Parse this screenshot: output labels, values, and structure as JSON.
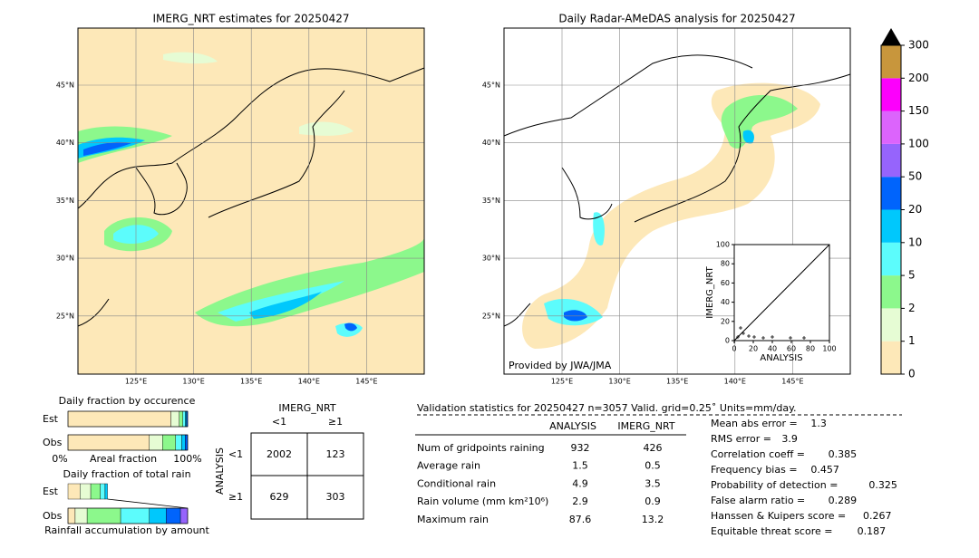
{
  "left_map": {
    "title": "IMERG_NRT estimates for 20250427",
    "lat_labels": [
      "45°N",
      "40°N",
      "35°N",
      "30°N",
      "25°N"
    ],
    "lon_labels": [
      "125°E",
      "130°E",
      "135°E",
      "140°E",
      "145°E"
    ]
  },
  "right_map": {
    "title": "Daily Radar-AMeDAS analysis for 20250427",
    "lat_labels": [
      "45°N",
      "40°N",
      "35°N",
      "30°N",
      "25°N"
    ],
    "lon_labels": [
      "125°E",
      "130°E",
      "135°E",
      "140°E",
      "145°E"
    ],
    "credit": "Provided by JWA/JMA",
    "inset": {
      "xlabel": "ANALYSIS",
      "ylabel": "IMERG_NRT",
      "xlim": [
        0,
        100
      ],
      "ylim": [
        0,
        100
      ],
      "xticks": [
        0,
        20,
        40,
        60,
        80,
        100
      ],
      "yticks": [
        0,
        20,
        40,
        60,
        80,
        100
      ]
    }
  },
  "colorbar": {
    "ticks": [
      0,
      1,
      2,
      5,
      10,
      20,
      50,
      100,
      150,
      200,
      300
    ],
    "colors": [
      "#fde8b8",
      "#e6fcd4",
      "#8cf88c",
      "#5cfcfc",
      "#00c8fc",
      "#0064fc",
      "#9664fc",
      "#dc64fc",
      "#fc00fc",
      "#c8963c"
    ],
    "extend_color": "#000000"
  },
  "fractions": {
    "occurrence_title": "Daily fraction by occurence",
    "rain_title": "Daily fraction of total rain",
    "row_labels": [
      "Est",
      "Obs"
    ],
    "row_labels_2": [
      "Est",
      "Obs"
    ],
    "axis_left": "0%",
    "axis_mid": "Areal fraction",
    "axis_right": "100%",
    "footer": "Rainfall accumulation by amount",
    "colors": [
      "#fde8b8",
      "#e6fcd4",
      "#8cf88c",
      "#5cfcfc",
      "#00c8fc",
      "#0064fc",
      "#9664fc"
    ],
    "occurrence_est": [
      86,
      7,
      3,
      2,
      1,
      1
    ],
    "occurrence_obs": [
      68,
      11,
      11,
      5,
      3,
      2
    ],
    "rain_est": [
      10,
      9,
      8,
      4,
      2
    ],
    "rain_obs": [
      6,
      10,
      28,
      24,
      14,
      12,
      6
    ]
  },
  "contingency": {
    "col_title": "IMERG_NRT",
    "col_labels": [
      "<1",
      "≥1"
    ],
    "row_title": "ANALYSIS",
    "row_labels": [
      "<1",
      "≥1"
    ],
    "cells": [
      [
        2002,
        123
      ],
      [
        629,
        303
      ]
    ]
  },
  "stats": {
    "header": "Validation statistics for 20250427  n=3057 Valid. grid=0.25˚ Units=mm/day.",
    "columns": [
      "ANALYSIS",
      "IMERG_NRT"
    ],
    "rows": [
      {
        "label": "Num of gridpoints raining",
        "values": [
          932,
          426
        ]
      },
      {
        "label": "Average rain",
        "values": [
          1.5,
          0.5
        ]
      },
      {
        "label": "Conditional rain",
        "values": [
          4.9,
          3.5
        ]
      },
      {
        "label": "Rain volume (mm km²10⁶)",
        "values": [
          2.9,
          0.9
        ]
      },
      {
        "label": "Maximum rain",
        "values": [
          87.6,
          13.2
        ]
      }
    ],
    "scores": [
      {
        "label": "Mean abs error =",
        "value": 1.3
      },
      {
        "label": "RMS error =",
        "value": 3.9
      },
      {
        "label": "Correlation coeff =",
        "value": 0.385
      },
      {
        "label": "Frequency bias =",
        "value": 0.457
      },
      {
        "label": "Probability of detection =",
        "value": 0.325
      },
      {
        "label": "False alarm ratio =",
        "value": 0.289
      },
      {
        "label": "Hanssen & Kuipers score =",
        "value": 0.267
      },
      {
        "label": "Equitable threat score =",
        "value": 0.187
      }
    ]
  }
}
